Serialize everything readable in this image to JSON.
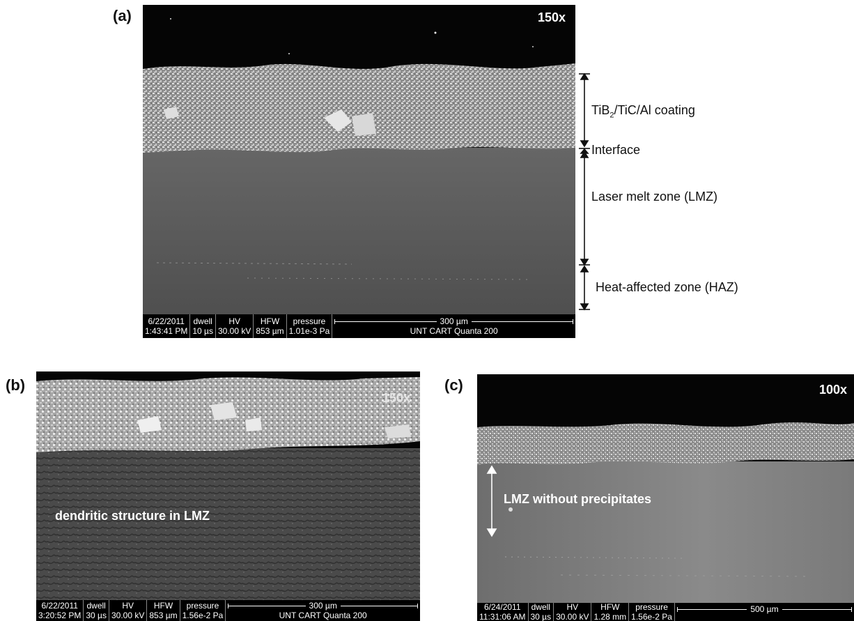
{
  "panels": {
    "a": {
      "label": "(a)",
      "magnification": "150x",
      "infobar": {
        "date": "6/22/2011",
        "time": "1:43:41 PM",
        "dwell_label": "dwell",
        "dwell": "10 µs",
        "hv_label": "HV",
        "hv": "30.00 kV",
        "hfw_label": "HFW",
        "hfw": "853 µm",
        "pressure_label": "pressure",
        "pressure": "1.01e-3 Pa",
        "scale": "300 µm",
        "instrument": "UNT CART Quanta 200"
      },
      "annotations": {
        "coating_prefix": "TiB",
        "coating_sub": "2",
        "coating_suffix": "/TiC/Al coating",
        "interface": "Interface",
        "lmz": "Laser melt zone (LMZ)",
        "haz": "Heat-affected zone (HAZ)"
      }
    },
    "b": {
      "label": "(b)",
      "magnification": "150x",
      "overlay": "dendritic structure in LMZ",
      "infobar": {
        "date": "6/22/2011",
        "time": "3:20:52 PM",
        "dwell_label": "dwell",
        "dwell": "30 µs",
        "hv_label": "HV",
        "hv": "30.00 kV",
        "hfw_label": "HFW",
        "hfw": "853 µm",
        "pressure_label": "pressure",
        "pressure": "1.56e-2 Pa",
        "scale": "300 µm",
        "instrument": "UNT CART Quanta 200"
      }
    },
    "c": {
      "label": "(c)",
      "magnification": "100x",
      "overlay": "LMZ without precipitates",
      "infobar": {
        "date": "6/24/2011",
        "time": "11:31:06 AM",
        "dwell_label": "dwell",
        "dwell": "30 µs",
        "hv_label": "HV",
        "hv": "30.00 kV",
        "hfw_label": "HFW",
        "hfw": "1.28 mm",
        "pressure_label": "pressure",
        "pressure": "1.56e-2 Pa",
        "scale": "500 µm"
      }
    }
  },
  "colors": {
    "vacuum": "#050505",
    "coating": "#9a9a9a",
    "substrate_a": "#5c5c5c",
    "substrate_b": "#3e3e3e",
    "substrate_c": "#7a7a7a"
  }
}
